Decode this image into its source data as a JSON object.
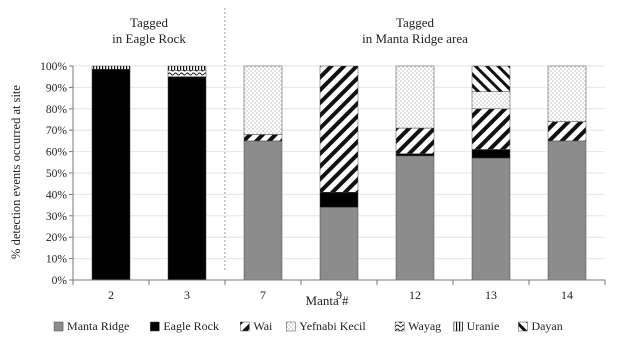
{
  "chart_data": {
    "type": "bar",
    "stacked": true,
    "xlabel": "Manta #",
    "ylabel": "% detection events occurred at site",
    "ylim": [
      0,
      100
    ],
    "y_ticks": [
      "0%",
      "10%",
      "20%",
      "30%",
      "40%",
      "50%",
      "60%",
      "70%",
      "80%",
      "90%",
      "100%"
    ],
    "y_tick_values": [
      0,
      10,
      20,
      30,
      40,
      50,
      60,
      70,
      80,
      90,
      100
    ],
    "categories": [
      "2",
      "3",
      "7",
      "9",
      "12",
      "13",
      "14"
    ],
    "groups": [
      {
        "label_line1": "Tagged",
        "label_line2": "in Eagle Rock",
        "categories": [
          "2",
          "3"
        ]
      },
      {
        "label_line1": "Tagged",
        "label_line2": "in Manta Ridge area",
        "categories": [
          "7",
          "9",
          "12",
          "13",
          "14"
        ]
      }
    ],
    "series": [
      {
        "name": "Manta Ridge",
        "values": [
          0,
          0,
          65,
          34,
          58,
          57,
          65
        ],
        "pattern": "gray"
      },
      {
        "name": "Eagle Rock",
        "values": [
          98.5,
          95,
          0,
          7,
          1,
          4,
          0
        ],
        "pattern": "black"
      },
      {
        "name": "Wai",
        "values": [
          0,
          0,
          3,
          59,
          12,
          19,
          9
        ],
        "pattern": "hatch-bold"
      },
      {
        "name": "Yefnabi Kecil",
        "values": [
          0,
          0,
          32,
          0,
          29,
          8,
          26
        ],
        "pattern": "dots"
      },
      {
        "name": "Wayag",
        "values": [
          0,
          3,
          0,
          0,
          0,
          0,
          0
        ],
        "pattern": "wavy"
      },
      {
        "name": "Uranie",
        "values": [
          1.5,
          2,
          0,
          0,
          0,
          0,
          0
        ],
        "pattern": "vertical"
      },
      {
        "name": "Dayan",
        "values": [
          0,
          0,
          0,
          0,
          0,
          12,
          0
        ],
        "pattern": "hatch"
      }
    ],
    "colors": {
      "manta_ridge": "#8c8c8c",
      "eagle_rock": "#000000",
      "axis": "#777777"
    },
    "legend_position": "bottom"
  }
}
